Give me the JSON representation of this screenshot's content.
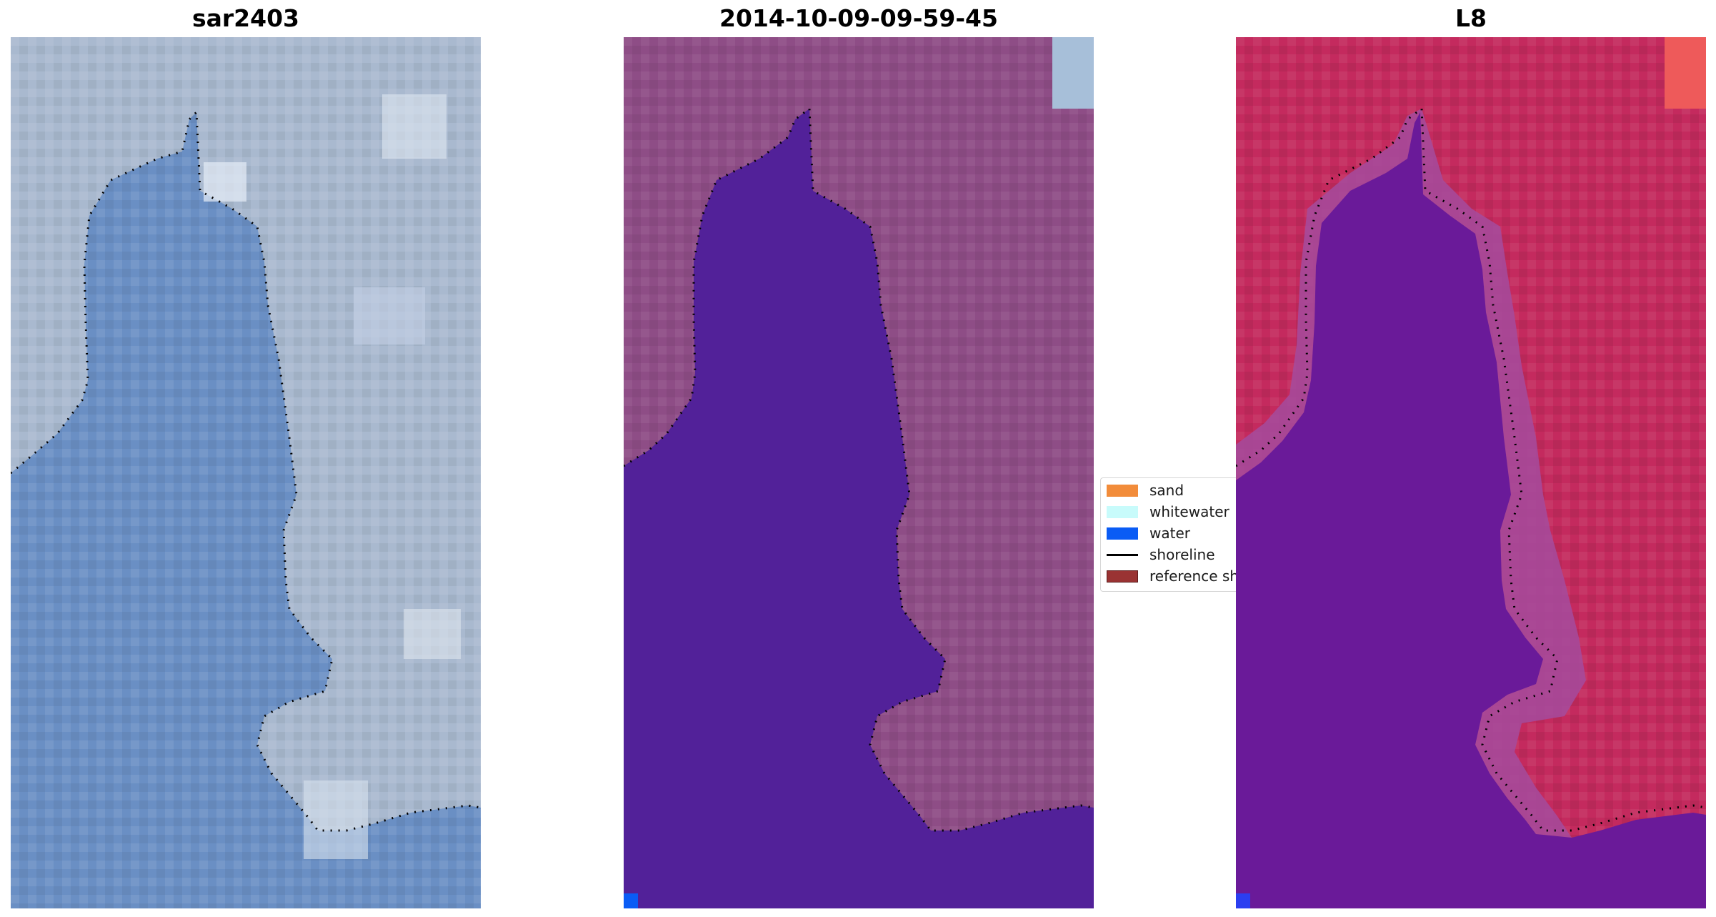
{
  "panels": [
    {
      "title": "sar2403"
    },
    {
      "title": "2014-10-09-09-59-45"
    },
    {
      "title": "L8"
    }
  ],
  "legend": {
    "items": [
      {
        "label": "sand",
        "color": "#f28c3a"
      },
      {
        "label": "whitewater",
        "color": "#c8fbfb"
      },
      {
        "label": "water",
        "color": "#0a5cf5"
      },
      {
        "label": "shoreline",
        "color": "#000000"
      },
      {
        "label": "reference sh",
        "color": "#9a3333"
      }
    ]
  },
  "colors": {
    "rgb_land": "#a9b9cf",
    "rgb_water": "#6a8fc4",
    "class_land": "#8e4d86",
    "class_water": "#522199",
    "mndwi_land": "#c42a5e",
    "mndwi_water": "#6a1a99"
  }
}
